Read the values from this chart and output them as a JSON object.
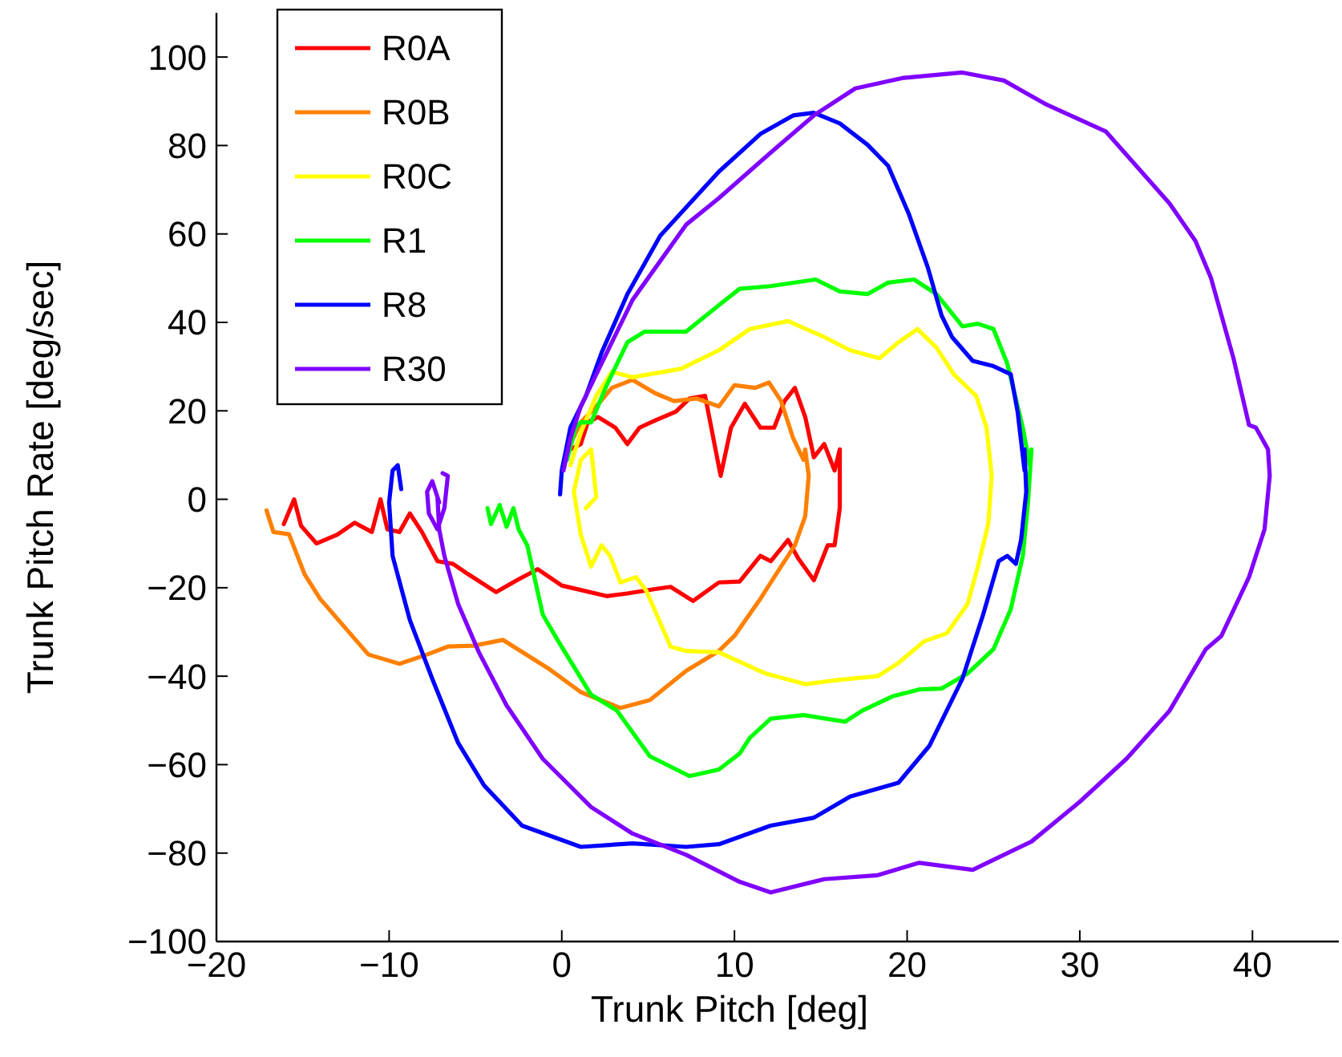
{
  "chart_data": {
    "type": "line",
    "xlabel": "Trunk Pitch [deg]",
    "ylabel": "Trunk Pitch Rate [deg/sec]",
    "xlim": [
      -20,
      45
    ],
    "ylim": [
      -100,
      110
    ],
    "xticks": [
      -20,
      -10,
      0,
      10,
      20,
      30,
      40
    ],
    "yticks": [
      -100,
      -80,
      -60,
      -40,
      -20,
      0,
      20,
      40,
      60,
      80,
      100
    ],
    "grid": false,
    "legend": "top left",
    "line_style": "solid",
    "marker": "none",
    "series": [
      {
        "name": "R0A",
        "color": "#ff0000",
        "x": [
          -16.1,
          -15.5,
          -15.1,
          -14.2,
          -13,
          -12,
          -11,
          -10.5,
          -10.1,
          -9.4,
          -8.8,
          -8.1,
          -7.2,
          -6.3,
          -5.4,
          -3.8,
          -2.6,
          -1.4,
          0,
          2.6,
          3.8,
          5.4,
          6.3,
          7.6,
          9.1,
          10.3,
          11.5,
          12.1,
          13.1,
          13.7,
          14.6,
          15.4,
          15.8,
          16.1,
          16.1,
          15.8,
          15.2,
          14.6,
          14.1,
          13.5,
          12.9,
          12.3,
          11.5,
          10.6,
          9.8,
          9.2,
          8.3,
          7.4,
          6.6,
          5.5,
          4.5,
          3.8,
          3.1,
          2.1,
          1.5,
          1.1,
          0.5
        ],
        "values": [
          -5.6,
          0,
          -6,
          -10,
          -8,
          -5.3,
          -7.4,
          0,
          -6.8,
          -7.4,
          -3.2,
          -7.4,
          -14,
          -14.6,
          -17,
          -21,
          -18.3,
          -15.8,
          -19.5,
          -21.9,
          -21.3,
          -20.3,
          -19.8,
          -23,
          -18.8,
          -18.6,
          -12.8,
          -14,
          -9.2,
          -13.4,
          -18.3,
          -10.4,
          -10.4,
          -2,
          11.3,
          6.5,
          12.5,
          9.5,
          18.6,
          25.2,
          22.2,
          16.2,
          16.2,
          21.6,
          16.2,
          5.3,
          23.4,
          22.8,
          19.8,
          18,
          16.2,
          12.5,
          16.2,
          18.6,
          17.4,
          12.5,
          11.3
        ]
      },
      {
        "name": "R0B",
        "color": "#ff8000",
        "x": [
          -17.1,
          -16.7,
          -15.8,
          -14.9,
          -14,
          -12.4,
          -11.2,
          -9.4,
          -7.8,
          -6.6,
          -5.1,
          -3.4,
          -0.8,
          1.1,
          3.4,
          5.1,
          7.2,
          9.1,
          10,
          11.5,
          12.7,
          13.5,
          14.1,
          14.3,
          14.1,
          14,
          13.4,
          12.7,
          12,
          11.2,
          10,
          9.1,
          7.8,
          6.5,
          5.4,
          4.1,
          2.9,
          2,
          1.1,
          0.5
        ],
        "values": [
          -2.5,
          -7.4,
          -7.9,
          -16.9,
          -22.5,
          -29.7,
          -35.1,
          -37.2,
          -35.1,
          -33.3,
          -33.1,
          -31.8,
          -38.2,
          -43.6,
          -47.2,
          -45.4,
          -38.8,
          -34.3,
          -30.9,
          -22.5,
          -15.2,
          -10.4,
          -3.8,
          5.3,
          11.3,
          8.9,
          13.8,
          22.2,
          26.4,
          25.2,
          25.8,
          21,
          22.8,
          22.2,
          24,
          27,
          25.2,
          21,
          17.4,
          12.5
        ]
      },
      {
        "name": "R0C",
        "color": "#ffff00",
        "x": [
          1.4,
          2,
          1.7,
          1.1,
          0.7,
          1.1,
          1.7,
          2.3,
          2.8,
          3.4,
          4.3,
          4.9,
          6.3,
          7.2,
          9.1,
          11.8,
          14.1,
          16.1,
          18.3,
          19.5,
          21,
          22.3,
          23.5,
          24.1,
          24.7,
          24.9,
          24.6,
          24,
          22.7,
          21.7,
          20.6,
          19.5,
          18.4,
          16.7,
          15.2,
          13.1,
          10.9,
          9.1,
          6.9,
          4.1,
          2.9,
          2,
          1.1,
          0.5
        ],
        "values": [
          -2,
          0.5,
          11.3,
          8.9,
          1.7,
          -8,
          -15.2,
          -10.4,
          -12.8,
          -18.8,
          -17.6,
          -20.7,
          -33.3,
          -34.3,
          -34.6,
          -39.4,
          -41.8,
          -40.8,
          -40,
          -37,
          -32.1,
          -30.3,
          -23.7,
          -15.2,
          -5.6,
          5.3,
          16.2,
          23.4,
          28.3,
          34.3,
          38.5,
          35.5,
          31.9,
          33.7,
          36.7,
          40.3,
          38.5,
          33.7,
          29.5,
          27.6,
          28.8,
          23.4,
          15,
          7.7
        ]
      },
      {
        "name": "R1",
        "color": "#00ff00",
        "x": [
          -4.3,
          -4.1,
          -3.6,
          -3.2,
          -2.8,
          -2.5,
          -2,
          -1.1,
          -0.2,
          1.7,
          3.2,
          5.1,
          7.4,
          9.1,
          10.3,
          10.9,
          12.1,
          14,
          16.4,
          17.4,
          19.2,
          20.7,
          22,
          23.5,
          25,
          26,
          26.7,
          27,
          27.2,
          27.1,
          26.7,
          25.8,
          25,
          24.1,
          23.2,
          21.7,
          20.4,
          18.9,
          17.7,
          16.1,
          14.7,
          12.1,
          10.3,
          9.1,
          7.2,
          4.8,
          3.8,
          2.6,
          1.7,
          1.1,
          0.8,
          0.3
        ],
        "values": [
          -2,
          -5.6,
          -1.3,
          -6.2,
          -2,
          -6.8,
          -10.4,
          -26.1,
          -32.1,
          -44.2,
          -47.8,
          -58.1,
          -62.6,
          -61.1,
          -57.5,
          -53.9,
          -49.6,
          -48.8,
          -50.3,
          -47.8,
          -44.5,
          -43,
          -42.8,
          -39.4,
          -33.9,
          -24.9,
          -12.8,
          -0.7,
          11.3,
          7.7,
          16.2,
          30.7,
          38.5,
          39.7,
          39.1,
          46.4,
          49.7,
          49,
          46.4,
          47,
          49.7,
          48.2,
          47.6,
          43.9,
          37.9,
          37.9,
          35.5,
          25.8,
          17.4,
          17.4,
          16.2,
          8.9
        ]
      },
      {
        "name": "R8",
        "color": "#0000ff",
        "x": [
          -9.3,
          -9.5,
          -9.8,
          -10,
          -9.8,
          -8.8,
          -7.5,
          -6,
          -4.5,
          -2.3,
          1.1,
          4.1,
          7.2,
          9.1,
          12.1,
          14.6,
          16.7,
          19.5,
          21.3,
          23.2,
          24.4,
          25.3,
          25.8,
          26.3,
          26.6,
          26.9,
          26.8,
          26.8,
          26.4,
          26,
          25,
          23.8,
          22.6,
          22,
          21.2,
          20.1,
          18.9,
          17.7,
          16.1,
          14.6,
          13.4,
          11.5,
          9.1,
          5.7,
          3.8,
          2.3,
          1.4,
          0.5,
          0,
          -0.1
        ],
        "values": [
          2.3,
          7.7,
          6.5,
          -0.7,
          -12.8,
          -27.3,
          -40.6,
          -55.1,
          -64.7,
          -73.8,
          -78.6,
          -77.8,
          -78.6,
          -78,
          -73.8,
          -72,
          -67.2,
          -64.1,
          -55.7,
          -40.6,
          -26.1,
          -14,
          -12.8,
          -14.6,
          -9.2,
          1.7,
          11.3,
          6.5,
          19.8,
          28.3,
          30.1,
          31.3,
          36.7,
          41.5,
          52.4,
          64.5,
          75.4,
          80.2,
          85,
          87.4,
          86.8,
          82.6,
          74.1,
          59.6,
          46.4,
          33.1,
          23.4,
          16.2,
          6.5,
          1.1
        ]
      },
      {
        "name": "R30",
        "color": "#8000ff",
        "x": [
          -6.9,
          -6.6,
          -6.8,
          -7.2,
          -7.7,
          -7.8,
          -7.5,
          -7.1,
          -7.2,
          -7.1,
          -6.8,
          -6,
          -4.8,
          -3.2,
          -1.1,
          1.7,
          4.1,
          7.2,
          10.3,
          12.1,
          15.2,
          18.3,
          20.7,
          23.8,
          27.2,
          30,
          32.7,
          35.2,
          37.3,
          38.2,
          39.8,
          40.7,
          41,
          40.9,
          40.2,
          39.8,
          38.9,
          37.6,
          36.7,
          35.2,
          31.5,
          28.1,
          25.6,
          23.2,
          19.8,
          17,
          14.6,
          12.1,
          9.1,
          7.2,
          4.1,
          2,
          1.1,
          0.5,
          0.1
        ],
        "values": [
          5.9,
          5.3,
          -2,
          -6.8,
          -3.2,
          1.7,
          4.1,
          -0.7,
          0.5,
          -6.8,
          -12.8,
          -23.7,
          -34.6,
          -46.6,
          -58.7,
          -69.6,
          -75.6,
          -80.4,
          -86.5,
          -88.9,
          -85.9,
          -85,
          -82.2,
          -83.8,
          -77.4,
          -68.4,
          -58.7,
          -47.8,
          -33.9,
          -30.9,
          -17.6,
          -6.8,
          5.3,
          11.3,
          16.2,
          16.8,
          31.9,
          50,
          58.4,
          66.9,
          83.2,
          89.2,
          94.7,
          96.5,
          95.3,
          92.9,
          86.8,
          78.4,
          68.1,
          62.1,
          45.1,
          28.3,
          21,
          13.8,
          6.5
        ]
      }
    ]
  }
}
